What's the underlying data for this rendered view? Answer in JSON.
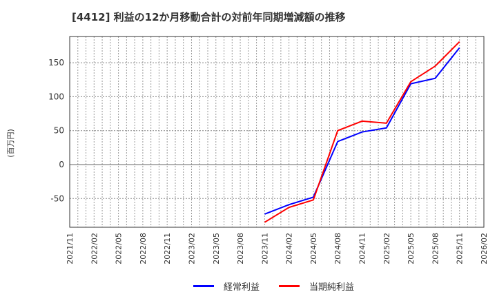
{
  "title": "[4412]  利益の12か月移動合計の対前年同期増減額の推移",
  "y_unit_label": "(百万円)",
  "legend": [
    {
      "label": "経常利益",
      "color": "#0000ff"
    },
    {
      "label": "当期純利益",
      "color": "#ff0000"
    }
  ],
  "chart_data": {
    "type": "line",
    "title": "[4412]  利益の12か月移動合計の対前年同期増減額の推移",
    "xlabel": "",
    "ylabel": "(百万円)",
    "ylim": [
      -93,
      190
    ],
    "yticks": [
      -50,
      0,
      50,
      100,
      150
    ],
    "xticks": [
      "2021/11",
      "2022/02",
      "2022/05",
      "2022/08",
      "2022/11",
      "2023/02",
      "2023/05",
      "2023/08",
      "2023/11",
      "2024/02",
      "2024/05",
      "2024/08",
      "2024/11",
      "2025/02",
      "2025/05",
      "2025/08",
      "2025/11",
      "2026/02"
    ],
    "grid": true,
    "legend_position": "bottom",
    "x": [
      "2023/11",
      "2024/02",
      "2024/05",
      "2024/08",
      "2024/11",
      "2025/02",
      "2025/05",
      "2025/08",
      "2025/11"
    ],
    "series": [
      {
        "name": "経常利益",
        "color": "#0000ff",
        "values": [
          -73,
          -59,
          -48,
          34,
          48,
          54,
          119,
          127,
          172
        ]
      },
      {
        "name": "当期純利益",
        "color": "#ff0000",
        "values": [
          -85,
          -63,
          -52,
          50,
          64,
          61,
          122,
          145,
          181
        ]
      }
    ]
  }
}
